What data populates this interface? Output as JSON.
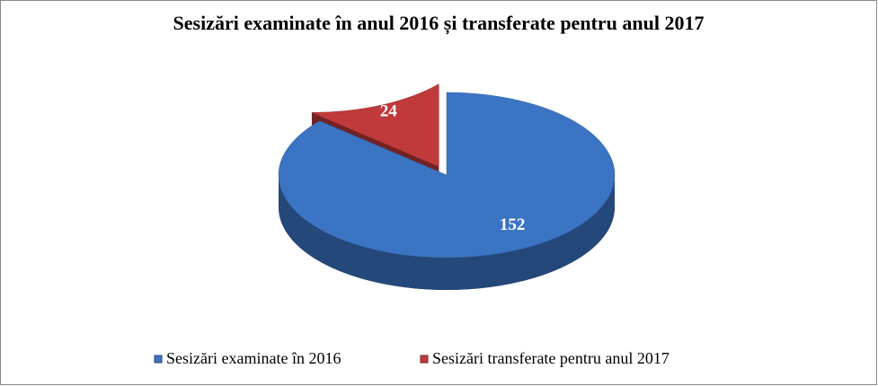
{
  "chart_data": {
    "type": "pie3d",
    "title": "Sesizări examinate în anul 2016 și transferate pentru anul 2017",
    "categories": [
      "Sesizări examinate în 2016",
      "Sesizări transferate pentru anul 2017"
    ],
    "values": [
      152,
      24
    ],
    "colors": [
      "#3c74c4",
      "#c0393b"
    ],
    "legend": "bottom"
  }
}
